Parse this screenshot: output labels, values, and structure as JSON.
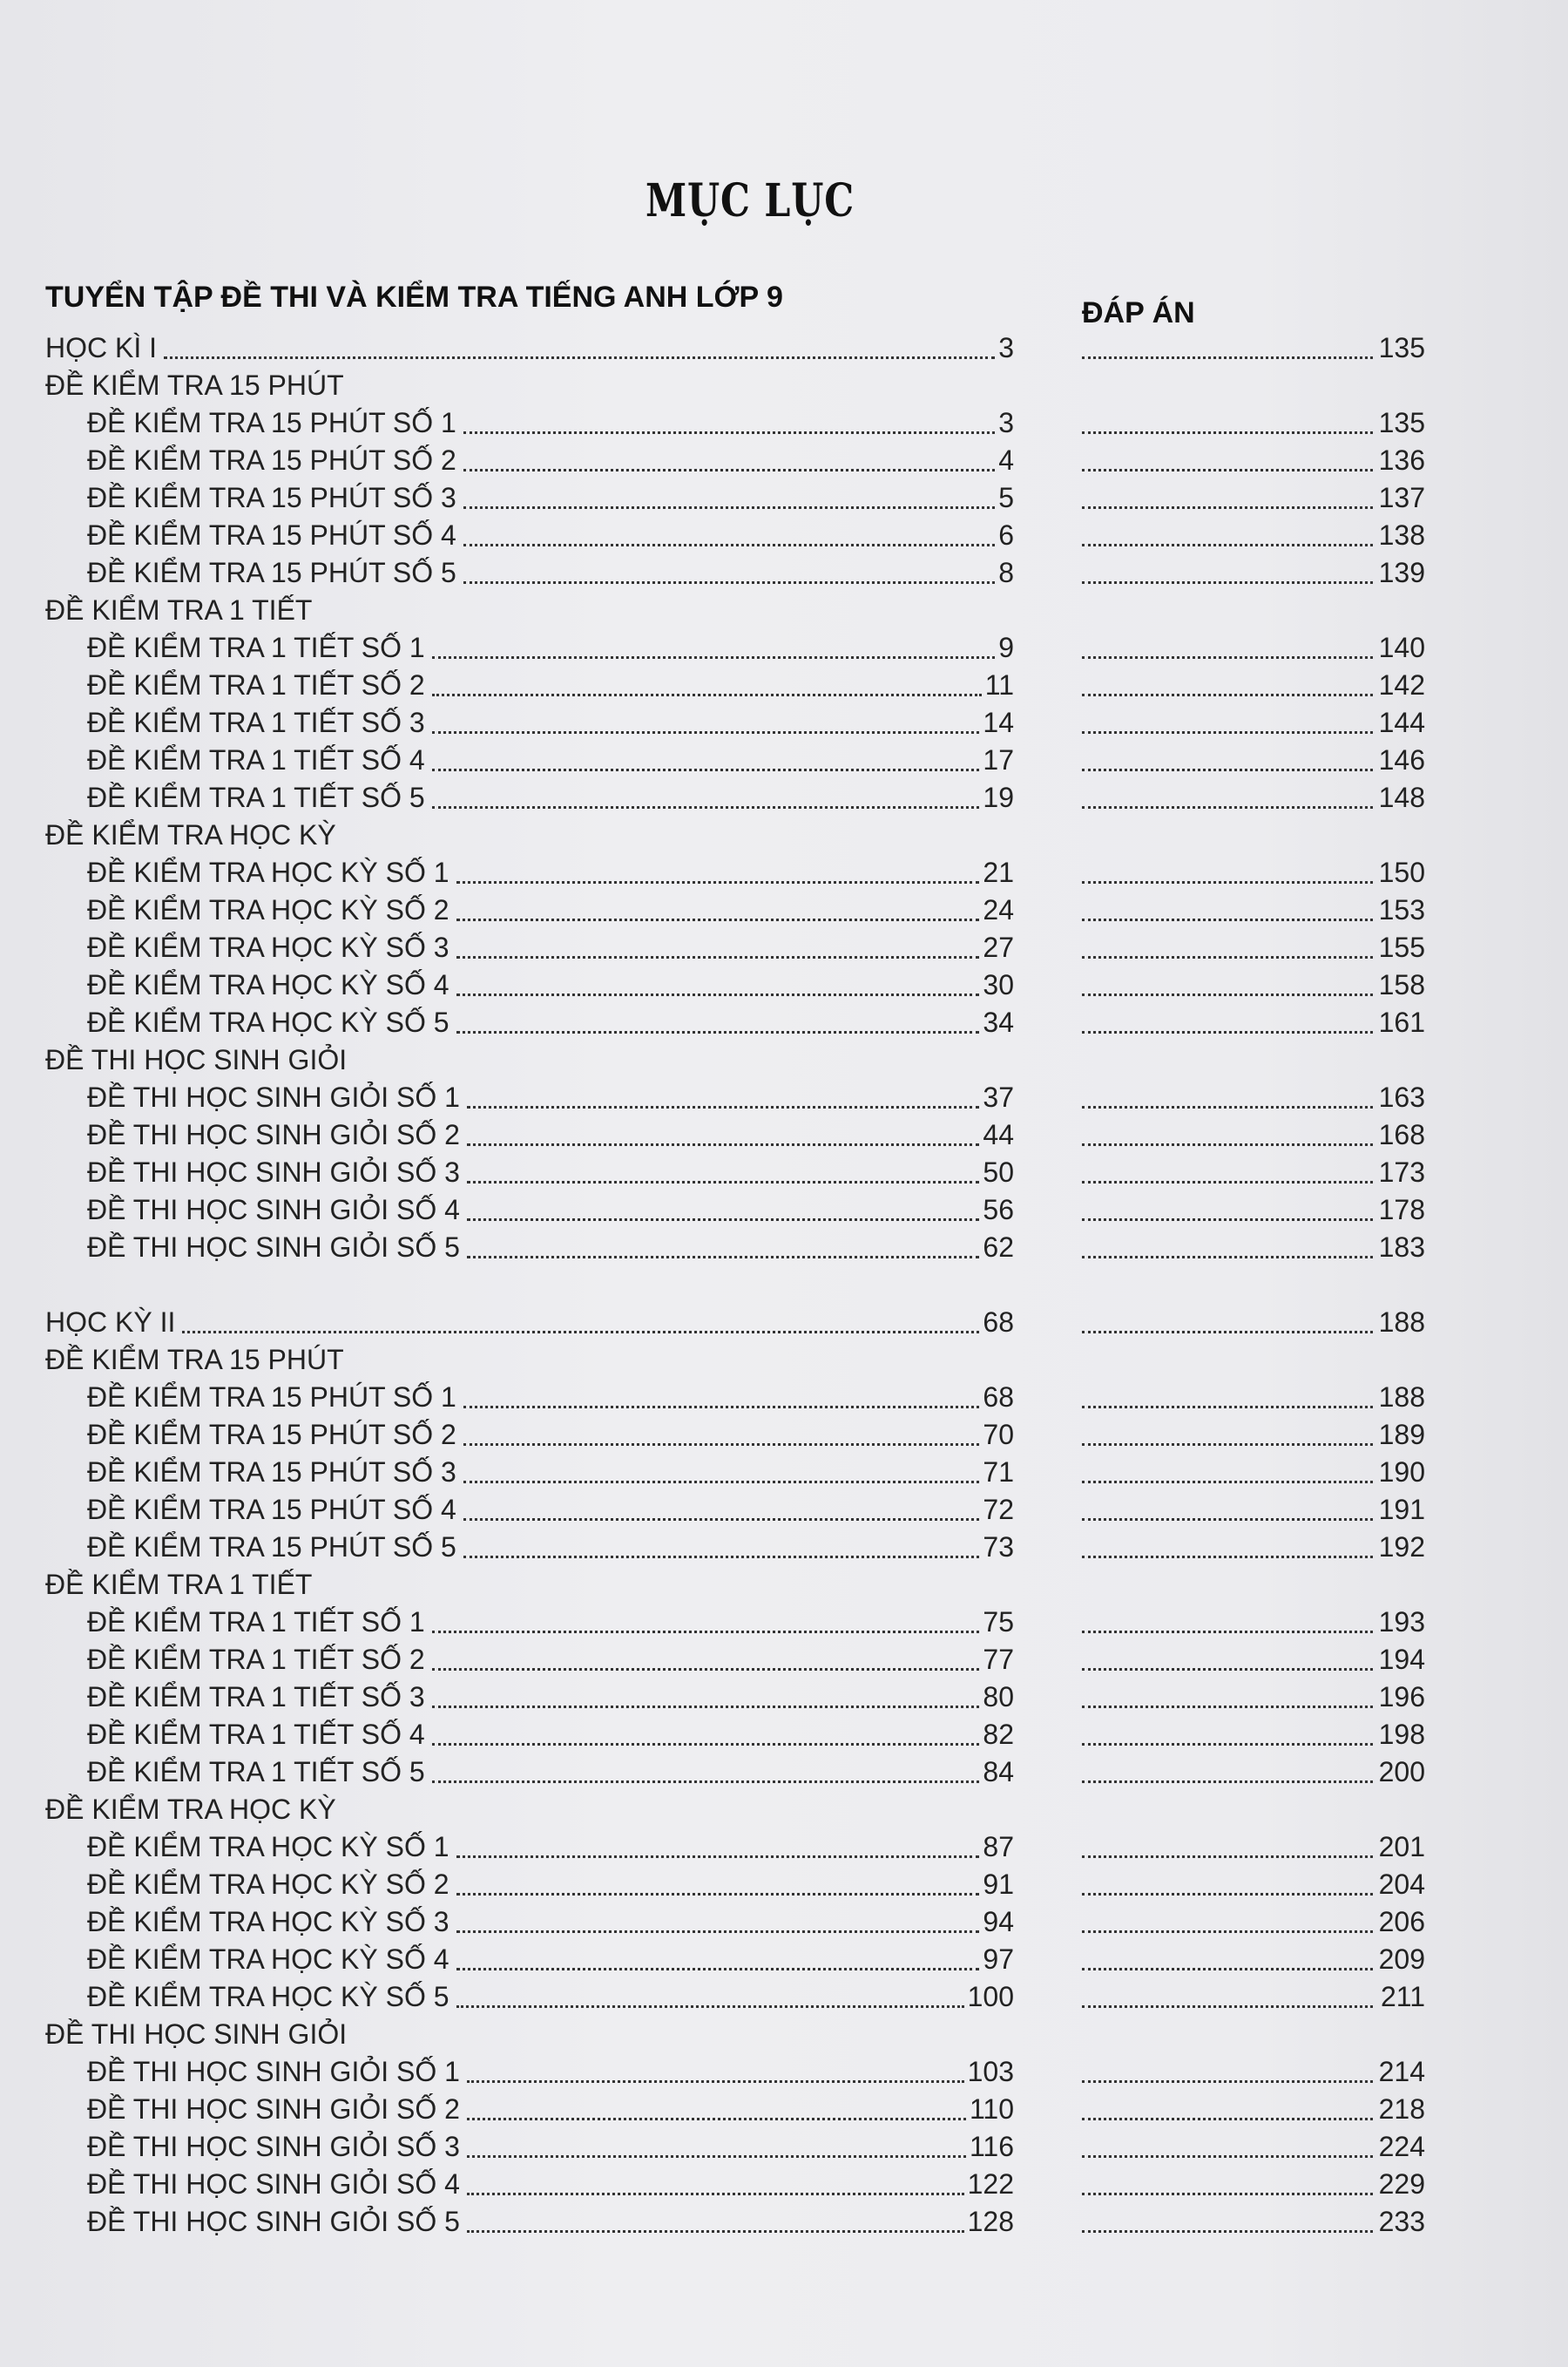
{
  "title": "MỤC LỤC",
  "book_title": "TUYỂN TẬP ĐỀ THI VÀ KIỂM TRA TIẾNG ANH LỚP 9",
  "answer_header": "ĐÁP ÁN",
  "entries": [
    {
      "kind": "part",
      "label": "HỌC KÌ I",
      "page": "3",
      "answer": "135"
    },
    {
      "kind": "heading",
      "label": "ĐỀ KIỂM TRA 15 PHÚT"
    },
    {
      "kind": "sub",
      "label": "ĐỀ KIỂM TRA 15 PHÚT SỐ 1",
      "page": "3",
      "answer": "135"
    },
    {
      "kind": "sub",
      "label": "ĐỀ KIỂM TRA 15 PHÚT SỐ 2",
      "page": "4",
      "answer": "136"
    },
    {
      "kind": "sub",
      "label": "ĐỀ KIỂM TRA 15 PHÚT SỐ 3",
      "page": "5",
      "answer": "137"
    },
    {
      "kind": "sub",
      "label": "ĐỀ KIỂM TRA 15 PHÚT SỐ 4",
      "page": "6",
      "answer": "138"
    },
    {
      "kind": "sub",
      "label": "ĐỀ KIỂM TRA 15 PHÚT SỐ 5",
      "page": "8",
      "answer": "139"
    },
    {
      "kind": "heading",
      "label": "ĐỀ KIỂM TRA 1 TIẾT"
    },
    {
      "kind": "sub",
      "label": "ĐỀ KIỂM TRA 1 TIẾT SỐ 1",
      "page": "9",
      "answer": "140"
    },
    {
      "kind": "sub",
      "label": "ĐỀ KIỂM TRA 1 TIẾT SỐ 2",
      "page": "11",
      "answer": "142"
    },
    {
      "kind": "sub",
      "label": "ĐỀ KIỂM TRA 1 TIẾT SỐ 3",
      "page": "14",
      "answer": "144"
    },
    {
      "kind": "sub",
      "label": "ĐỀ KIỂM TRA 1 TIẾT SỐ 4",
      "page": "17",
      "answer": "146"
    },
    {
      "kind": "sub",
      "label": "ĐỀ KIỂM TRA 1 TIẾT SỐ 5",
      "page": "19",
      "answer": "148"
    },
    {
      "kind": "heading",
      "label": "ĐỀ KIỂM TRA HỌC KỲ"
    },
    {
      "kind": "sub",
      "label": "ĐỀ KIỂM TRA HỌC KỲ SỐ 1",
      "page": "21",
      "answer": "150"
    },
    {
      "kind": "sub",
      "label": "ĐỀ KIỂM TRA HỌC KỲ SỐ 2",
      "page": "24",
      "answer": "153"
    },
    {
      "kind": "sub",
      "label": "ĐỀ KIỂM TRA HỌC KỲ SỐ 3",
      "page": "27",
      "answer": "155"
    },
    {
      "kind": "sub",
      "label": "ĐỀ KIỂM TRA HỌC KỲ SỐ 4",
      "page": "30",
      "answer": "158"
    },
    {
      "kind": "sub",
      "label": "ĐỀ KIỂM TRA HỌC KỲ SỐ 5",
      "page": "34",
      "answer": "161"
    },
    {
      "kind": "heading",
      "label": "ĐỀ THI HỌC SINH GIỎI"
    },
    {
      "kind": "sub",
      "label": "ĐỀ THI HỌC SINH GIỎI SỐ 1",
      "page": "37",
      "answer": "163"
    },
    {
      "kind": "sub",
      "label": "ĐỀ THI HỌC SINH GIỎI SỐ 2",
      "page": "44",
      "answer": "168"
    },
    {
      "kind": "sub",
      "label": "ĐỀ THI HỌC SINH GIỎI SỐ 3",
      "page": "50",
      "answer": "173"
    },
    {
      "kind": "sub",
      "label": "ĐỀ THI HỌC SINH GIỎI SỐ 4",
      "page": "56",
      "answer": "178"
    },
    {
      "kind": "sub",
      "label": "ĐỀ THI HỌC SINH GIỎI SỐ 5",
      "page": "62",
      "answer": "183"
    },
    {
      "kind": "part",
      "label": "HỌC KỲ II",
      "page": "68",
      "answer": "188",
      "gap": true
    },
    {
      "kind": "heading",
      "label": "ĐỀ KIỂM TRA 15 PHÚT"
    },
    {
      "kind": "sub",
      "label": "ĐỀ KIỂM TRA 15 PHÚT SỐ 1",
      "page": "68",
      "answer": "188"
    },
    {
      "kind": "sub",
      "label": "ĐỀ KIỂM TRA 15 PHÚT SỐ 2",
      "page": "70",
      "answer": "189"
    },
    {
      "kind": "sub",
      "label": "ĐỀ KIỂM TRA 15 PHÚT SỐ 3",
      "page": "71",
      "answer": "190"
    },
    {
      "kind": "sub",
      "label": "ĐỀ KIỂM TRA 15 PHÚT SỐ 4",
      "page": "72",
      "answer": "191"
    },
    {
      "kind": "sub",
      "label": "ĐỀ KIỂM TRA 15 PHÚT SỐ 5",
      "page": "73",
      "answer": "192"
    },
    {
      "kind": "heading",
      "label": "ĐỀ KIỂM TRA 1 TIẾT"
    },
    {
      "kind": "sub",
      "label": "ĐỀ KIỂM TRA 1 TIẾT SỐ 1",
      "page": "75",
      "answer": "193"
    },
    {
      "kind": "sub",
      "label": "ĐỀ KIỂM TRA 1 TIẾT SỐ 2",
      "page": "77",
      "answer": "194"
    },
    {
      "kind": "sub",
      "label": "ĐỀ KIỂM TRA 1 TIẾT SỐ 3",
      "page": "80",
      "answer": "196"
    },
    {
      "kind": "sub",
      "label": "ĐỀ KIỂM TRA 1 TIẾT SỐ 4",
      "page": "82",
      "answer": "198"
    },
    {
      "kind": "sub",
      "label": "ĐỀ KIỂM TRA 1 TIẾT SỐ 5",
      "page": "84",
      "answer": "200"
    },
    {
      "kind": "heading",
      "label": "ĐỀ KIỂM TRA HỌC KỲ"
    },
    {
      "kind": "sub",
      "label": "ĐỀ KIỂM TRA HỌC KỲ SỐ 1",
      "page": "87",
      "answer": "201"
    },
    {
      "kind": "sub",
      "label": "ĐỀ KIỂM TRA HỌC KỲ SỐ 2",
      "page": "91",
      "answer": "204"
    },
    {
      "kind": "sub",
      "label": "ĐỀ KIỂM TRA HỌC KỲ SỐ 3",
      "page": "94",
      "answer": "206"
    },
    {
      "kind": "sub",
      "label": "ĐỀ KIỂM TRA HỌC KỲ SỐ 4",
      "page": "97",
      "answer": "209"
    },
    {
      "kind": "sub",
      "label": "ĐỀ KIỂM TRA HỌC KỲ SỐ 5",
      "page": "100",
      "answer": "211"
    },
    {
      "kind": "heading",
      "label": "ĐỀ THI HỌC SINH GIỎI"
    },
    {
      "kind": "sub",
      "label": "ĐỀ THI HỌC SINH GIỎI SỐ 1",
      "page": "103",
      "answer": "214"
    },
    {
      "kind": "sub",
      "label": "ĐỀ THI HỌC SINH GIỎI SỐ 2",
      "page": "110",
      "answer": "218"
    },
    {
      "kind": "sub",
      "label": "ĐỀ THI HỌC SINH GIỎI SỐ 3",
      "page": "116",
      "answer": "224"
    },
    {
      "kind": "sub",
      "label": "ĐỀ THI HỌC SINH GIỎI SỐ 4",
      "page": "122",
      "answer": "229"
    },
    {
      "kind": "sub",
      "label": "ĐỀ THI HỌC SINH GIỎI SỐ 5",
      "page": "128",
      "answer": "233"
    }
  ]
}
